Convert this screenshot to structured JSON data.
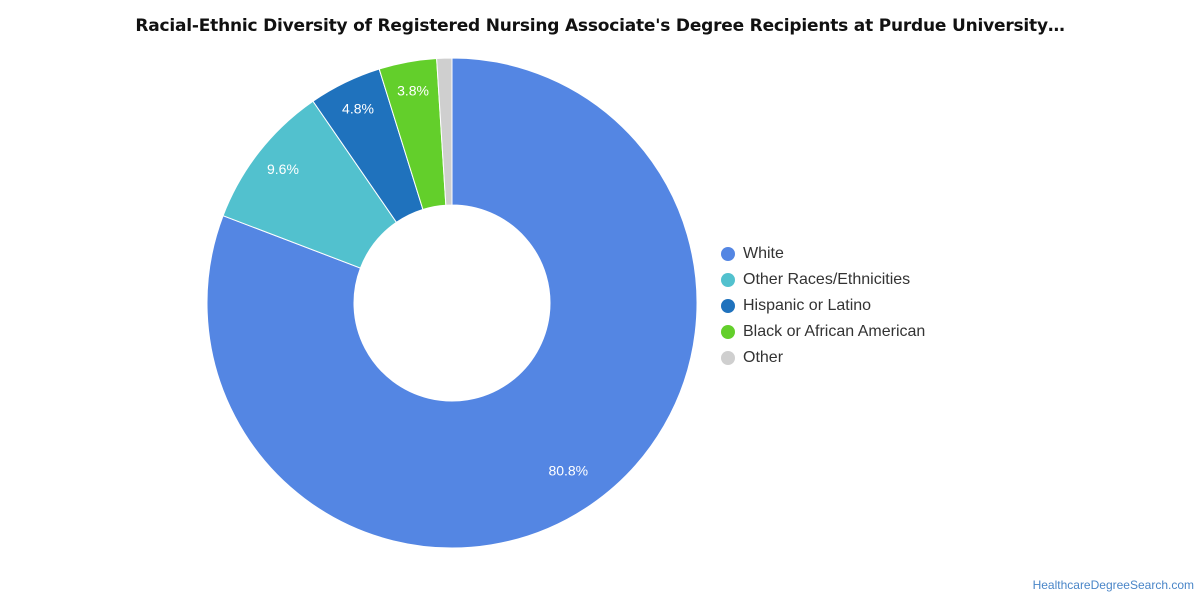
{
  "chart_data": {
    "type": "pie",
    "donut": true,
    "title": "Racial-Ethnic Diversity of Registered Nursing Associate's Degree Recipients at Purdue University…",
    "legend_position": "right",
    "slices": [
      {
        "name": "White",
        "value": 80.8,
        "label": "80.8%",
        "color": "#5486e3"
      },
      {
        "name": "Other Races/Ethnicities",
        "value": 9.6,
        "label": "9.6%",
        "color": "#52c1ce"
      },
      {
        "name": "Hispanic or Latino",
        "value": 4.8,
        "label": "4.8%",
        "color": "#1f72bd"
      },
      {
        "name": "Black or African American",
        "value": 3.8,
        "label": "3.8%",
        "color": "#63cf2b"
      },
      {
        "name": "Other",
        "value": 1.0,
        "label": "",
        "color": "#cfcfcf"
      }
    ]
  },
  "source": "HealthcareDegreeSearch.com"
}
